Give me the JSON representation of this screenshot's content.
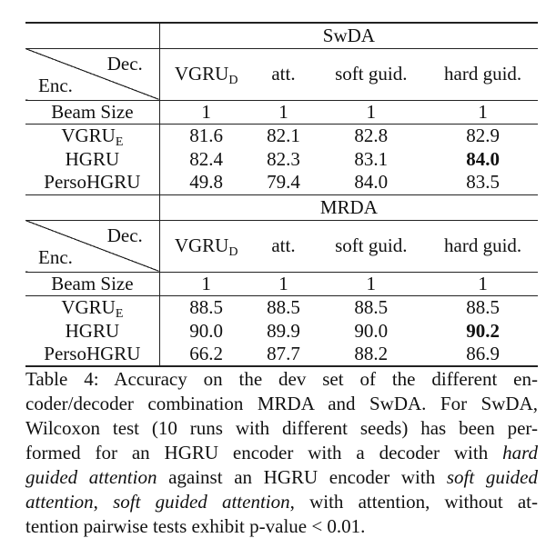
{
  "table": {
    "corner": {
      "dec": "Dec.",
      "enc": "Enc."
    },
    "columns": [
      "VGRU",
      "att.",
      "soft guid.",
      "hard guid."
    ],
    "col0_sub": "D",
    "beam_label": "Beam Size",
    "sections": [
      {
        "name": "SwDA",
        "beam": [
          "1",
          "1",
          "1",
          "1"
        ],
        "rows": [
          {
            "enc": "VGRU",
            "enc_sub": "E",
            "values": [
              "81.6",
              "82.1",
              "82.8",
              "82.9"
            ]
          },
          {
            "enc": "HGRU",
            "enc_sub": "",
            "values": [
              "82.4",
              "82.3",
              "83.1",
              "84.0"
            ]
          },
          {
            "enc": "PersoHGRU",
            "enc_sub": "",
            "values": [
              "49.8",
              "79.4",
              "84.0",
              "83.5"
            ]
          }
        ]
      },
      {
        "name": "MRDA",
        "beam": [
          "1",
          "1",
          "1",
          "1"
        ],
        "rows": [
          {
            "enc": "VGRU",
            "enc_sub": "E",
            "values": [
              "88.5",
              "88.5",
              "88.5",
              "88.5"
            ]
          },
          {
            "enc": "HGRU",
            "enc_sub": "",
            "values": [
              "90.0",
              "89.9",
              "90.0",
              "90.2"
            ]
          },
          {
            "enc": "PersoHGRU",
            "enc_sub": "",
            "values": [
              "66.2",
              "87.7",
              "88.2",
              "86.9"
            ]
          }
        ]
      }
    ]
  },
  "caption": {
    "l1": "Table 4: Accuracy on the dev set of the different en-",
    "l2": "coder/decoder combination MRDA and SwDA. For SwDA,",
    "l3": "Wilcoxon test (10 runs with different seeds) has been per-",
    "l4a": "formed for an HGRU encoder with a decoder with ",
    "l4b": "hard",
    "l5a": "guided attention",
    "l5b": " against an HGRU encoder with ",
    "l5c": "soft guided",
    "l6a": "attention",
    "l6b": ", ",
    "l6c": "soft guided attention",
    "l6d": ", with attention, without at-",
    "l7": "tention pairwise tests exhibit p-value < 0.01."
  }
}
